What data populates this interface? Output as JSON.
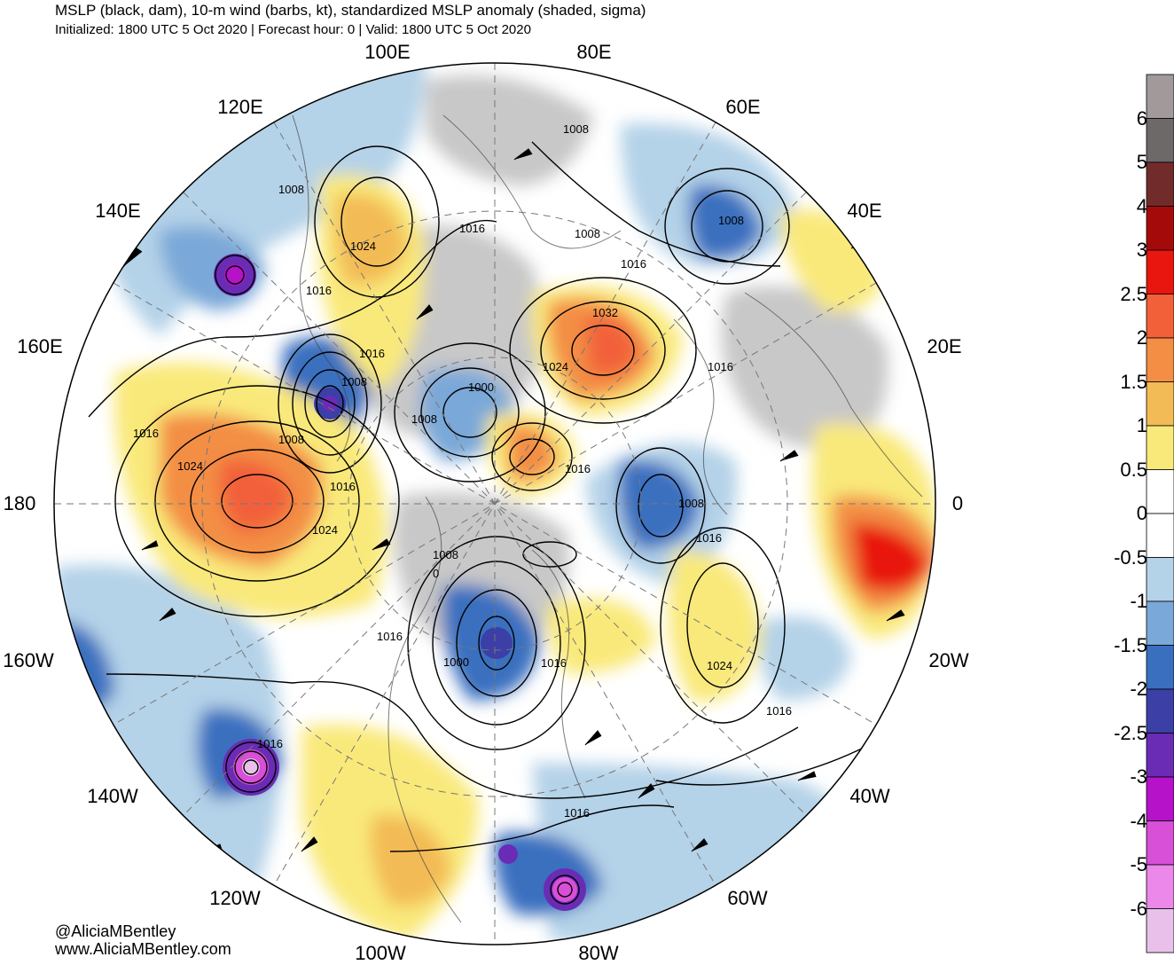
{
  "title": "MSLP (black, dam), 10-m wind (barbs, kt), standardized MSLP anomaly (shaded, sigma)",
  "subtitle": "Initialized: 1800 UTC 5 Oct 2020 | Forecast hour: 0 | Valid: 1800 UTC 5 Oct 2020",
  "credits": {
    "twitter": "@AliciaMBentley",
    "website": "www.AliciaMBentley.com"
  },
  "longitude_labels": [
    "100E",
    "80E",
    "120E",
    "60E",
    "140E",
    "40E",
    "160E",
    "20E",
    "180",
    "0",
    "160W",
    "20W",
    "140W",
    "40W",
    "120W",
    "60W",
    "100W",
    "80W"
  ],
  "colorbar": {
    "labels": [
      "6",
      "5",
      "4",
      "3",
      "2.5",
      "2",
      "1.5",
      "1",
      "0.5",
      "0",
      "-0.5",
      "-1",
      "-1.5",
      "-2",
      "-2.5",
      "-3",
      "-4",
      "-5",
      "-6"
    ],
    "colors": [
      "#a29a9a",
      "#6d6969",
      "#722b2b",
      "#a50a0a",
      "#e8160f",
      "#f2603a",
      "#f38e44",
      "#f3bb55",
      "#f9e97a",
      "#ffffff",
      "#ffffff",
      "#b4d2e8",
      "#7aa8d8",
      "#3a6fbf",
      "#3b3fa6",
      "#6a2cb4",
      "#b512c9",
      "#d84fd8",
      "#eb88ea",
      "#e8c0ea"
    ]
  },
  "isobar_labels": [
    "1008",
    "1016",
    "1008",
    "1008",
    "1016",
    "1024",
    "1016",
    "1032",
    "1016",
    "1008",
    "1024",
    "1000",
    "1008",
    "1016",
    "1016",
    "1008",
    "1024",
    "1016",
    "1008",
    "1016",
    "1024",
    "1008",
    "0",
    "1016",
    "1000",
    "1016",
    "1008",
    "1024",
    "1016",
    "1016",
    "1016",
    "1016"
  ],
  "map_colors": {
    "ocean_neutral": "#ffffff",
    "land_gray": "#c8c8c8"
  }
}
